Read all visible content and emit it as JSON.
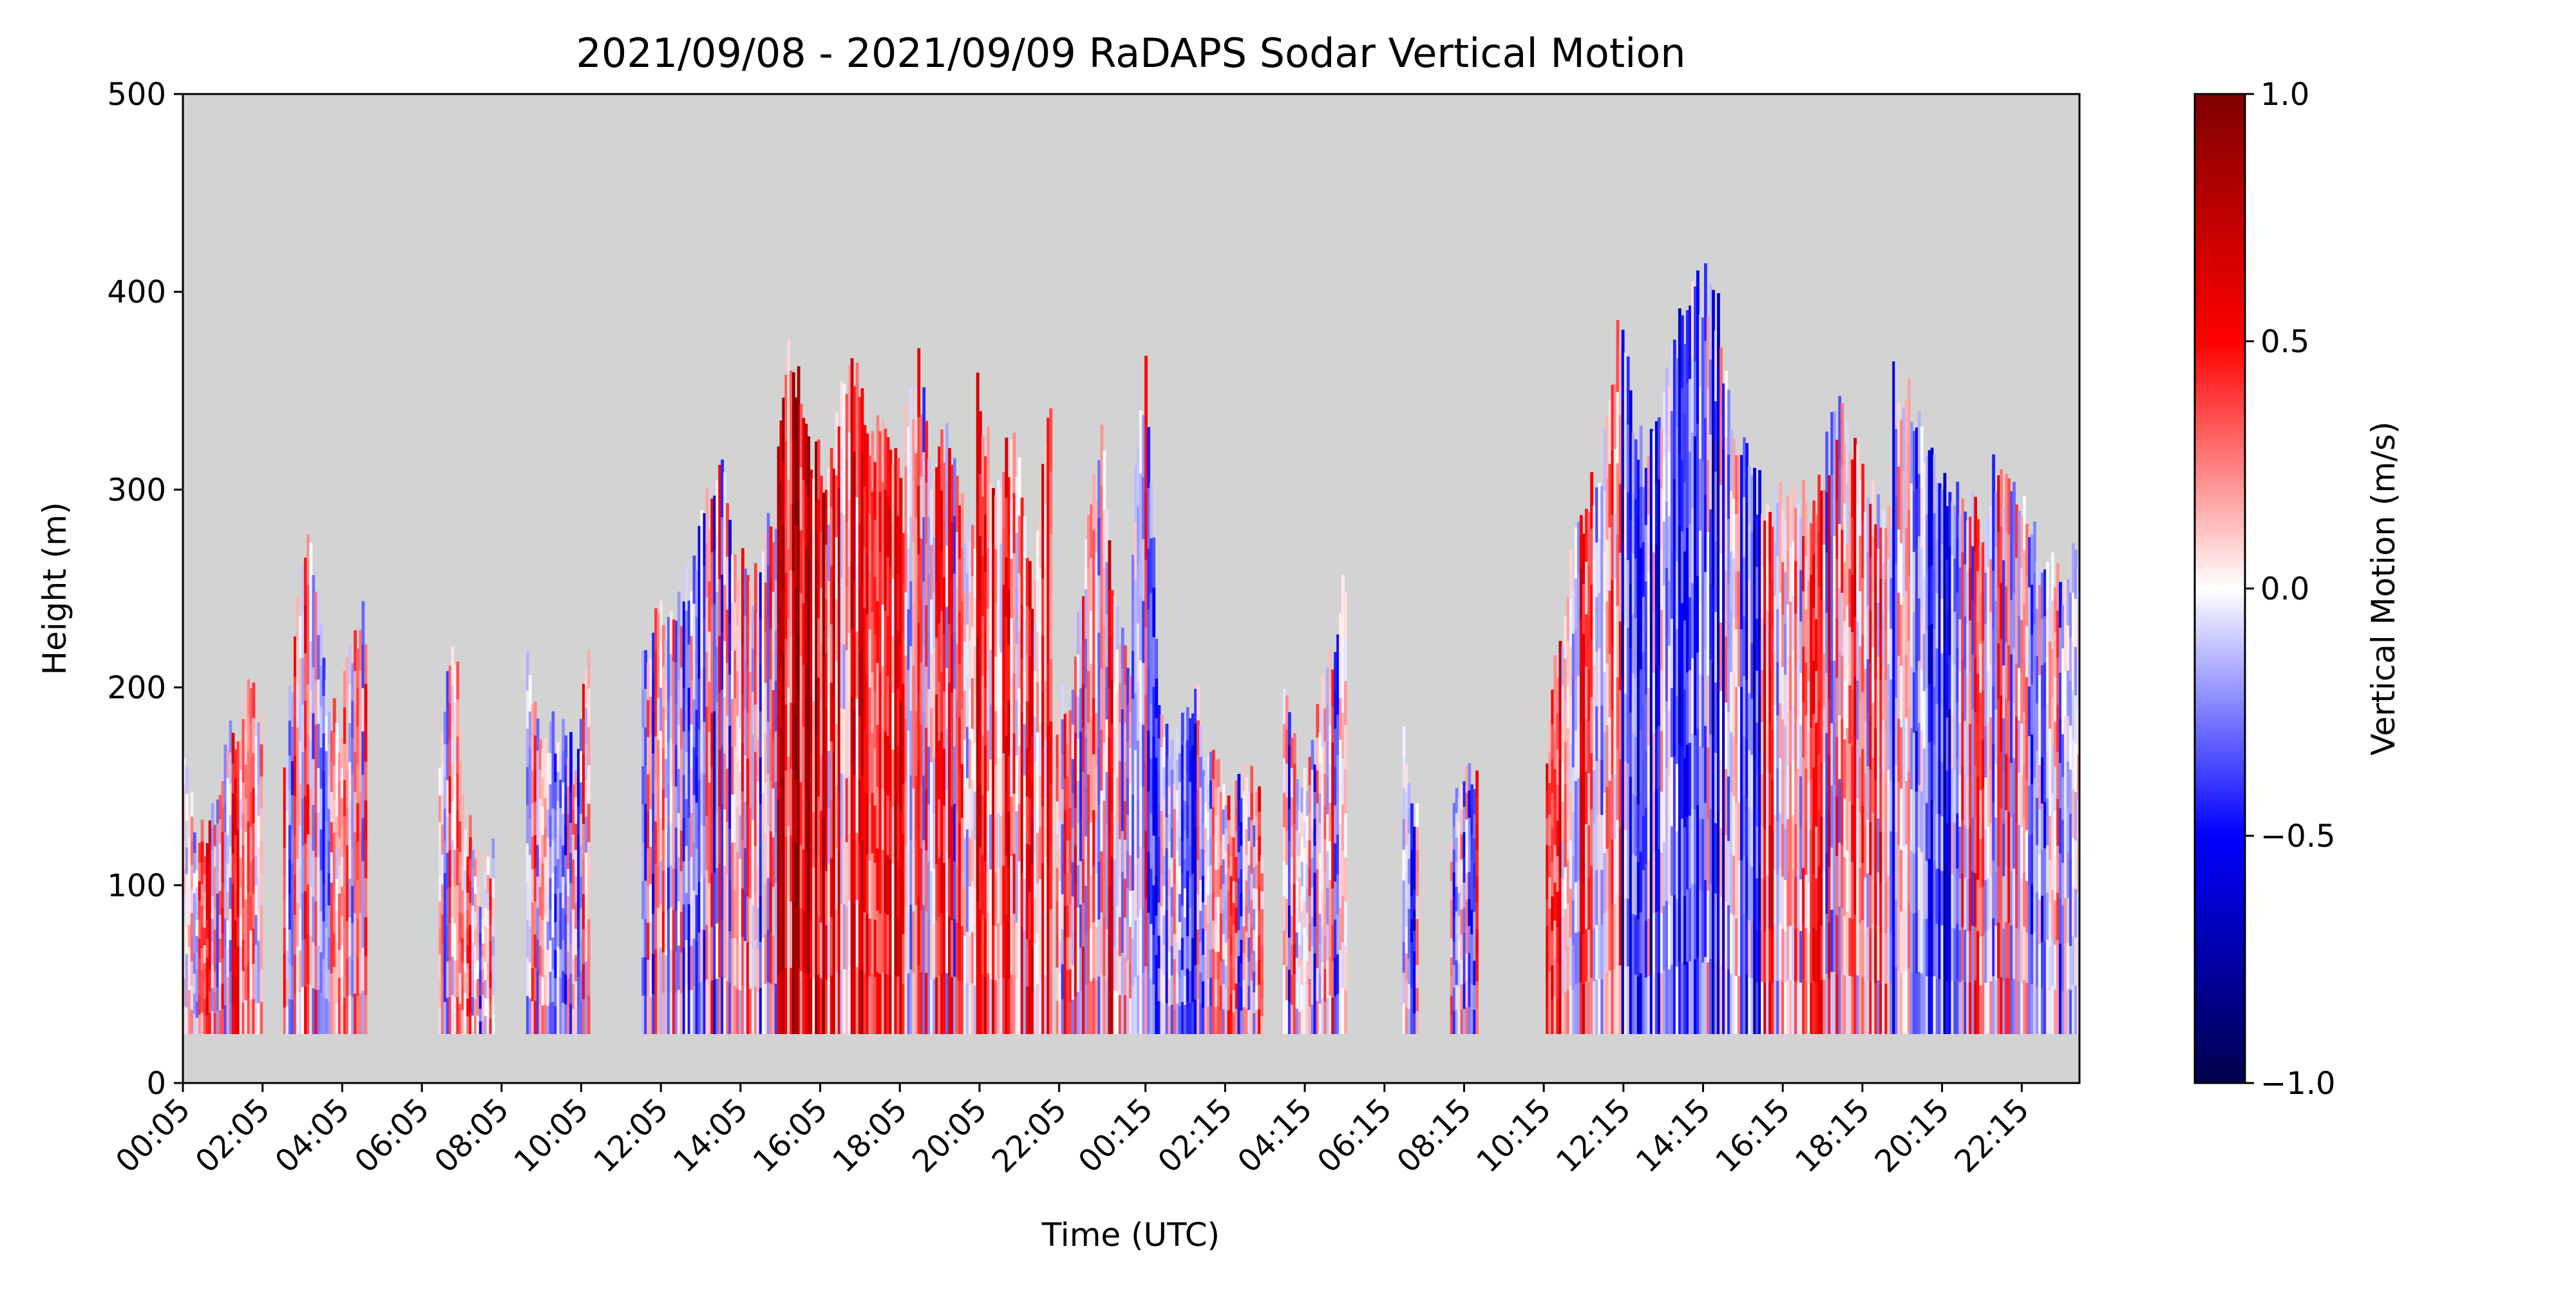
{
  "chart_data": {
    "type": "heatmap",
    "title": "2021/09/08 - 2021/09/09 RaDAPS Sodar Vertical Motion",
    "xlabel": "Time (UTC)",
    "ylabel": "Height (m)",
    "xlim_hours": [
      0.0833,
      47.7
    ],
    "ylim": [
      0,
      500
    ],
    "y_ticks": [
      0,
      100,
      200,
      300,
      400,
      500
    ],
    "x_ticks": [
      {
        "label": "00:05",
        "hour": 0.0833
      },
      {
        "label": "02:05",
        "hour": 2.0833
      },
      {
        "label": "04:05",
        "hour": 4.0833
      },
      {
        "label": "06:05",
        "hour": 6.0833
      },
      {
        "label": "08:05",
        "hour": 8.0833
      },
      {
        "label": "10:05",
        "hour": 10.0833
      },
      {
        "label": "12:05",
        "hour": 12.0833
      },
      {
        "label": "14:05",
        "hour": 14.0833
      },
      {
        "label": "16:05",
        "hour": 16.0833
      },
      {
        "label": "18:05",
        "hour": 18.0833
      },
      {
        "label": "20:05",
        "hour": 20.0833
      },
      {
        "label": "22:05",
        "hour": 22.0833
      },
      {
        "label": "00:15",
        "hour": 24.25
      },
      {
        "label": "02:15",
        "hour": 26.25
      },
      {
        "label": "04:15",
        "hour": 28.25
      },
      {
        "label": "06:15",
        "hour": 30.25
      },
      {
        "label": "08:15",
        "hour": 32.25
      },
      {
        "label": "10:15",
        "hour": 34.25
      },
      {
        "label": "12:15",
        "hour": 36.25
      },
      {
        "label": "14:15",
        "hour": 38.25
      },
      {
        "label": "16:15",
        "hour": 40.25
      },
      {
        "label": "18:15",
        "hour": 42.25
      },
      {
        "label": "20:15",
        "hour": 44.25
      },
      {
        "label": "22:15",
        "hour": 46.25
      }
    ],
    "missing_color": "#d3d3d3",
    "min_height_m": 25,
    "colorbar": {
      "label": "Vertical Motion (m/s)",
      "colormap": "seismic",
      "stops": [
        "#00004c",
        "#0000ff",
        "#ffffff",
        "#ff0000",
        "#7f0000"
      ],
      "range": [
        -1.0,
        1.0
      ],
      "ticks": [
        {
          "value": 1.0,
          "label": "1.0"
        },
        {
          "value": 0.5,
          "label": "0.5"
        },
        {
          "value": 0.0,
          "label": "0.0"
        },
        {
          "value": -0.5,
          "label": "−0.5"
        },
        {
          "value": -1.0,
          "label": "−1.0"
        }
      ]
    },
    "series": [
      {
        "start_hour": 0.08,
        "end_hour": 2.08,
        "heights": [
          160,
          115,
          130,
          160,
          175,
          190,
          185
        ],
        "mean_w": 0.2
      },
      {
        "start_hour": 2.6,
        "end_hour": 4.7,
        "heights": [
          160,
          235,
          280,
          200,
          175,
          220,
          235
        ],
        "mean_w": 0.08
      },
      {
        "start_hour": 6.5,
        "end_hour": 7.9,
        "heights": [
          160,
          235,
          130,
          100,
          115
        ],
        "mean_w": 0.02
      },
      {
        "start_hour": 8.7,
        "end_hour": 10.3,
        "heights": [
          205,
          175,
          180,
          165,
          205
        ],
        "mean_w": -0.03
      },
      {
        "start_hour": 11.6,
        "end_hour": 15.0,
        "heights": [
          220,
          235,
          240,
          275,
          310,
          260,
          250,
          290
        ],
        "mean_w": 0.0
      },
      {
        "start_hour": 15.0,
        "end_hour": 16.2,
        "heights": [
          310,
          370,
          350,
          320,
          310
        ],
        "mean_w": 0.55
      },
      {
        "start_hour": 16.2,
        "end_hour": 18.2,
        "heights": [
          300,
          340,
          370,
          320,
          330,
          290
        ],
        "mean_w": 0.35
      },
      {
        "start_hour": 18.2,
        "end_hour": 20.0,
        "heights": [
          330,
          360,
          290,
          335,
          290,
          280
        ],
        "mean_w": 0.1
      },
      {
        "start_hour": 20.0,
        "end_hour": 21.9,
        "heights": [
          355,
          290,
          330,
          250,
          355
        ],
        "mean_w": 0.22
      },
      {
        "start_hour": 22.0,
        "end_hour": 23.9,
        "heights": [
          190,
          205,
          265,
          325,
          235,
          200
        ],
        "mean_w": 0.15
      },
      {
        "start_hour": 23.9,
        "end_hour": 25.6,
        "heights": [
          280,
          370,
          200,
          160,
          185,
          210
        ],
        "mean_w": -0.08
      },
      {
        "start_hour": 25.6,
        "end_hour": 27.2,
        "heights": [
          175,
          160,
          135,
          160,
          130
        ],
        "mean_w": 0.05
      },
      {
        "start_hour": 27.7,
        "end_hour": 29.3,
        "heights": [
          190,
          150,
          175,
          210,
          250
        ],
        "mean_w": 0.0
      },
      {
        "start_hour": 30.7,
        "end_hour": 31.1,
        "heights": [
          175,
          145,
          140
        ],
        "mean_w": -0.15
      },
      {
        "start_hour": 31.9,
        "end_hour": 32.6,
        "heights": [
          130,
          160
        ],
        "mean_w": 0.05
      },
      {
        "start_hour": 34.3,
        "end_hour": 36.2,
        "heights": [
          175,
          245,
          290,
          310,
          385
        ],
        "mean_w": 0.18
      },
      {
        "start_hour": 36.2,
        "end_hour": 39.7,
        "heights": [
          370,
          310,
          355,
          400,
          400,
          320,
          300
        ],
        "mean_w": -0.25
      },
      {
        "start_hour": 39.7,
        "end_hour": 43.0,
        "heights": [
          295,
          290,
          295,
          340,
          300,
          285
        ],
        "mean_w": 0.15
      },
      {
        "start_hour": 43.0,
        "end_hour": 44.6,
        "heights": [
          355,
          340,
          310,
          300
        ],
        "mean_w": -0.2
      },
      {
        "start_hour": 44.6,
        "end_hour": 47.7,
        "heights": [
          305,
          280,
          310,
          295,
          265,
          250,
          265
        ],
        "mean_w": 0.05
      }
    ]
  }
}
